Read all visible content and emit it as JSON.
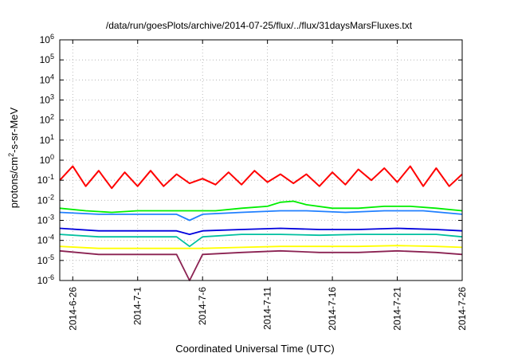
{
  "chart_data": {
    "type": "line",
    "title": "/data/run/goesPlots/archive/2014-07-25/flux/../flux/31daysMarsFluxes.txt",
    "xlabel": "Coordinated Universal Time (UTC)",
    "ylabel": {
      "prefix": "protons/cm",
      "sup": "2",
      "suffix": "-s-sr-MeV"
    },
    "x_range": [
      "2014-06-25",
      "2014-07-26"
    ],
    "y_scale": "log",
    "ylim": [
      1e-06,
      1000000.0
    ],
    "grid": true,
    "y_ticks": [
      {
        "value": 1e-06,
        "base": "10",
        "exp": "-6"
      },
      {
        "value": 1e-05,
        "base": "10",
        "exp": "-5"
      },
      {
        "value": 0.0001,
        "base": "10",
        "exp": "-4"
      },
      {
        "value": 0.001,
        "base": "10",
        "exp": "-3"
      },
      {
        "value": 0.01,
        "base": "10",
        "exp": "-2"
      },
      {
        "value": 0.1,
        "base": "10",
        "exp": "-1"
      },
      {
        "value": 1,
        "base": "10",
        "exp": "0"
      },
      {
        "value": 10,
        "base": "10",
        "exp": "1"
      },
      {
        "value": 100,
        "base": "10",
        "exp": "2"
      },
      {
        "value": 1000,
        "base": "10",
        "exp": "3"
      },
      {
        "value": 10000,
        "base": "10",
        "exp": "4"
      },
      {
        "value": 100000,
        "base": "10",
        "exp": "5"
      },
      {
        "value": 1000000,
        "base": "10",
        "exp": "6"
      }
    ],
    "x_ticks": [
      {
        "date": "2014-06-26",
        "label": "2014-6-26"
      },
      {
        "date": "2014-07-01",
        "label": "2014-7-1"
      },
      {
        "date": "2014-07-06",
        "label": "2014-7-6"
      },
      {
        "date": "2014-07-11",
        "label": "2014-7-11"
      },
      {
        "date": "2014-07-16",
        "label": "2014-7-16"
      },
      {
        "date": "2014-07-21",
        "label": "2014-7-21"
      },
      {
        "date": "2014-07-26",
        "label": "2014-7-26"
      }
    ],
    "series": [
      {
        "color": "#ff0000",
        "points": [
          [
            "2014-06-25",
            0.1
          ],
          [
            "2014-06-26",
            0.5
          ],
          [
            "2014-06-27",
            0.05
          ],
          [
            "2014-06-28",
            0.3
          ],
          [
            "2014-06-29",
            0.04
          ],
          [
            "2014-06-30",
            0.25
          ],
          [
            "2014-07-01",
            0.05
          ],
          [
            "2014-07-02",
            0.3
          ],
          [
            "2014-07-03",
            0.05
          ],
          [
            "2014-07-04",
            0.2
          ],
          [
            "2014-07-05",
            0.07
          ],
          [
            "2014-07-06",
            0.12
          ],
          [
            "2014-07-07",
            0.06
          ],
          [
            "2014-07-08",
            0.25
          ],
          [
            "2014-07-09",
            0.06
          ],
          [
            "2014-07-10",
            0.3
          ],
          [
            "2014-07-11",
            0.08
          ],
          [
            "2014-07-12",
            0.2
          ],
          [
            "2014-07-13",
            0.07
          ],
          [
            "2014-07-14",
            0.2
          ],
          [
            "2014-07-15",
            0.05
          ],
          [
            "2014-07-16",
            0.25
          ],
          [
            "2014-07-17",
            0.06
          ],
          [
            "2014-07-18",
            0.35
          ],
          [
            "2014-07-19",
            0.1
          ],
          [
            "2014-07-20",
            0.4
          ],
          [
            "2014-07-21",
            0.08
          ],
          [
            "2014-07-22",
            0.5
          ],
          [
            "2014-07-23",
            0.05
          ],
          [
            "2014-07-24",
            0.4
          ],
          [
            "2014-07-25",
            0.05
          ],
          [
            "2014-07-26",
            0.2
          ]
        ]
      },
      {
        "color": "#00ee00",
        "points": [
          [
            "2014-06-25",
            0.004
          ],
          [
            "2014-06-27",
            0.003
          ],
          [
            "2014-06-29",
            0.0025
          ],
          [
            "2014-07-01",
            0.003
          ],
          [
            "2014-07-03",
            0.003
          ],
          [
            "2014-07-05",
            0.003
          ],
          [
            "2014-07-07",
            0.003
          ],
          [
            "2014-07-09",
            0.004
          ],
          [
            "2014-07-11",
            0.005
          ],
          [
            "2014-07-12",
            0.008
          ],
          [
            "2014-07-13",
            0.009
          ],
          [
            "2014-07-14",
            0.006
          ],
          [
            "2014-07-16",
            0.004
          ],
          [
            "2014-07-18",
            0.004
          ],
          [
            "2014-07-20",
            0.005
          ],
          [
            "2014-07-22",
            0.005
          ],
          [
            "2014-07-24",
            0.004
          ],
          [
            "2014-07-26",
            0.003
          ]
        ]
      },
      {
        "color": "#2080ff",
        "points": [
          [
            "2014-06-25",
            0.0025
          ],
          [
            "2014-06-28",
            0.002
          ],
          [
            "2014-07-01",
            0.002
          ],
          [
            "2014-07-04",
            0.002
          ],
          [
            "2014-07-05",
            0.001
          ],
          [
            "2014-07-06",
            0.002
          ],
          [
            "2014-07-09",
            0.0025
          ],
          [
            "2014-07-12",
            0.003
          ],
          [
            "2014-07-14",
            0.003
          ],
          [
            "2014-07-17",
            0.0025
          ],
          [
            "2014-07-20",
            0.003
          ],
          [
            "2014-07-23",
            0.003
          ],
          [
            "2014-07-26",
            0.002
          ]
        ]
      },
      {
        "color": "#0000dd",
        "points": [
          [
            "2014-06-25",
            0.0004
          ],
          [
            "2014-06-28",
            0.0003
          ],
          [
            "2014-07-01",
            0.0003
          ],
          [
            "2014-07-04",
            0.0003
          ],
          [
            "2014-07-05",
            0.0002
          ],
          [
            "2014-07-06",
            0.0003
          ],
          [
            "2014-07-09",
            0.00035
          ],
          [
            "2014-07-12",
            0.0004
          ],
          [
            "2014-07-15",
            0.00035
          ],
          [
            "2014-07-18",
            0.00035
          ],
          [
            "2014-07-21",
            0.0004
          ],
          [
            "2014-07-24",
            0.00035
          ],
          [
            "2014-07-26",
            0.0003
          ]
        ]
      },
      {
        "color": "#00c0a0",
        "points": [
          [
            "2014-06-25",
            0.0002
          ],
          [
            "2014-06-28",
            0.00015
          ],
          [
            "2014-07-01",
            0.00015
          ],
          [
            "2014-07-04",
            0.00015
          ],
          [
            "2014-07-05",
            5e-05
          ],
          [
            "2014-07-06",
            0.00015
          ],
          [
            "2014-07-09",
            0.0002
          ],
          [
            "2014-07-12",
            0.0002
          ],
          [
            "2014-07-15",
            0.00018
          ],
          [
            "2014-07-18",
            0.0002
          ],
          [
            "2014-07-21",
            0.0002
          ],
          [
            "2014-07-24",
            0.0002
          ],
          [
            "2014-07-26",
            0.00015
          ]
        ]
      },
      {
        "color": "#ffff00",
        "points": [
          [
            "2014-06-25",
            5e-05
          ],
          [
            "2014-06-28",
            4e-05
          ],
          [
            "2014-07-01",
            4e-05
          ],
          [
            "2014-07-04",
            4e-05
          ],
          [
            "2014-07-06",
            4e-05
          ],
          [
            "2014-07-09",
            4.5e-05
          ],
          [
            "2014-07-12",
            5e-05
          ],
          [
            "2014-07-15",
            5e-05
          ],
          [
            "2014-07-18",
            5e-05
          ],
          [
            "2014-07-21",
            5.5e-05
          ],
          [
            "2014-07-24",
            5e-05
          ],
          [
            "2014-07-26",
            4.5e-05
          ]
        ]
      },
      {
        "color": "#8b2252",
        "points": [
          [
            "2014-06-25",
            3e-05
          ],
          [
            "2014-06-28",
            2e-05
          ],
          [
            "2014-07-01",
            2e-05
          ],
          [
            "2014-07-04",
            2e-05
          ],
          [
            "2014-07-05",
            1e-06
          ],
          [
            "2014-07-06",
            2e-05
          ],
          [
            "2014-07-09",
            2.5e-05
          ],
          [
            "2014-07-12",
            3e-05
          ],
          [
            "2014-07-15",
            2.5e-05
          ],
          [
            "2014-07-18",
            2.5e-05
          ],
          [
            "2014-07-21",
            3e-05
          ],
          [
            "2014-07-24",
            2.5e-05
          ],
          [
            "2014-07-26",
            2e-05
          ]
        ]
      }
    ]
  }
}
